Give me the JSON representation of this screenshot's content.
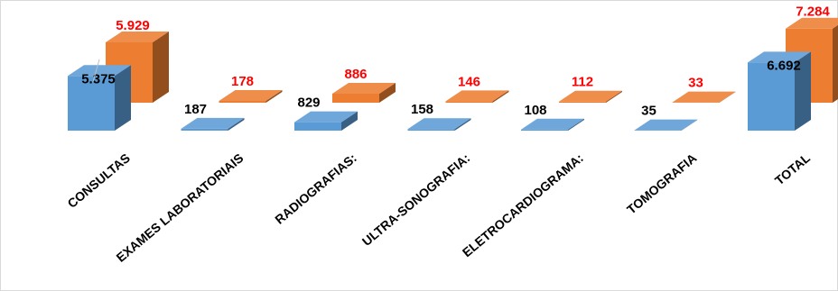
{
  "chart_data": {
    "type": "bar",
    "style": "3d-clustered-column",
    "categories": [
      "CONSULTAS",
      "EXAMES LABORATORIAIS",
      "RADIOGRAFIAS:",
      "ULTRA-SONOGRAFIA:",
      "ELETROCARDIOGRAMA:",
      "TOMOGRAFIA",
      "TOTAL"
    ],
    "series": [
      {
        "name": "",
        "color": "#5b9bd5",
        "label_color": "#000000",
        "values": [
          5375,
          187,
          829,
          158,
          108,
          35,
          6692
        ],
        "labels": [
          "5.375",
          "187",
          "829",
          "158",
          "108",
          "35",
          "6.692"
        ]
      },
      {
        "name": "",
        "color": "#ed7d31",
        "label_color": "#ff0000",
        "values": [
          5929,
          178,
          886,
          146,
          112,
          33,
          7284
        ],
        "labels": [
          "5.929",
          "178",
          "886",
          "146",
          "112",
          "33",
          "7.284"
        ]
      }
    ],
    "legend_position": "top",
    "grid": false
  }
}
